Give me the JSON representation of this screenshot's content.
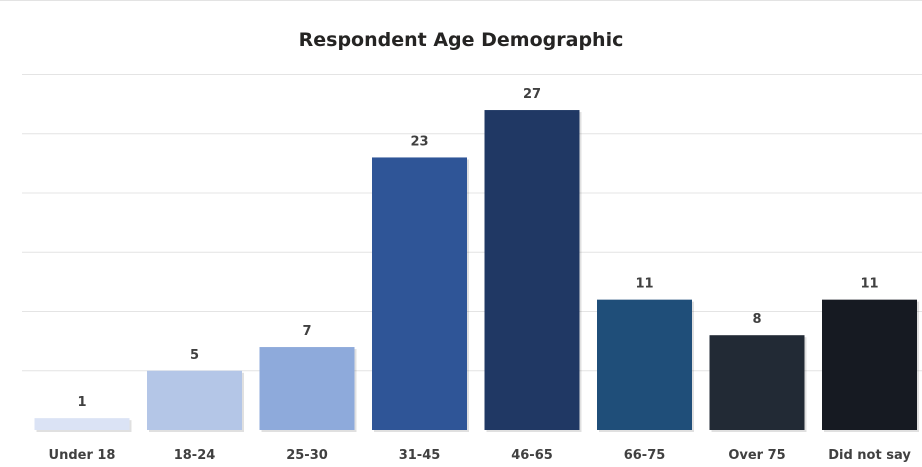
{
  "chart_data": {
    "type": "bar",
    "title": "Respondent Age Demographic",
    "xlabel": "",
    "ylabel": "",
    "categories": [
      "Under 18",
      "18-24",
      "25-30",
      "31-45",
      "46-65",
      "66-75",
      "Over 75",
      "Did not say"
    ],
    "values": [
      1,
      5,
      7,
      23,
      27,
      11,
      8,
      11
    ],
    "ylim": [
      0,
      30
    ],
    "grid": true,
    "data_labels": true,
    "colors": [
      "#dbe3f5",
      "#b4c6e7",
      "#8eaadb",
      "#2f5597",
      "#203864",
      "#1f4e79",
      "#222a35",
      "#161a22"
    ]
  }
}
